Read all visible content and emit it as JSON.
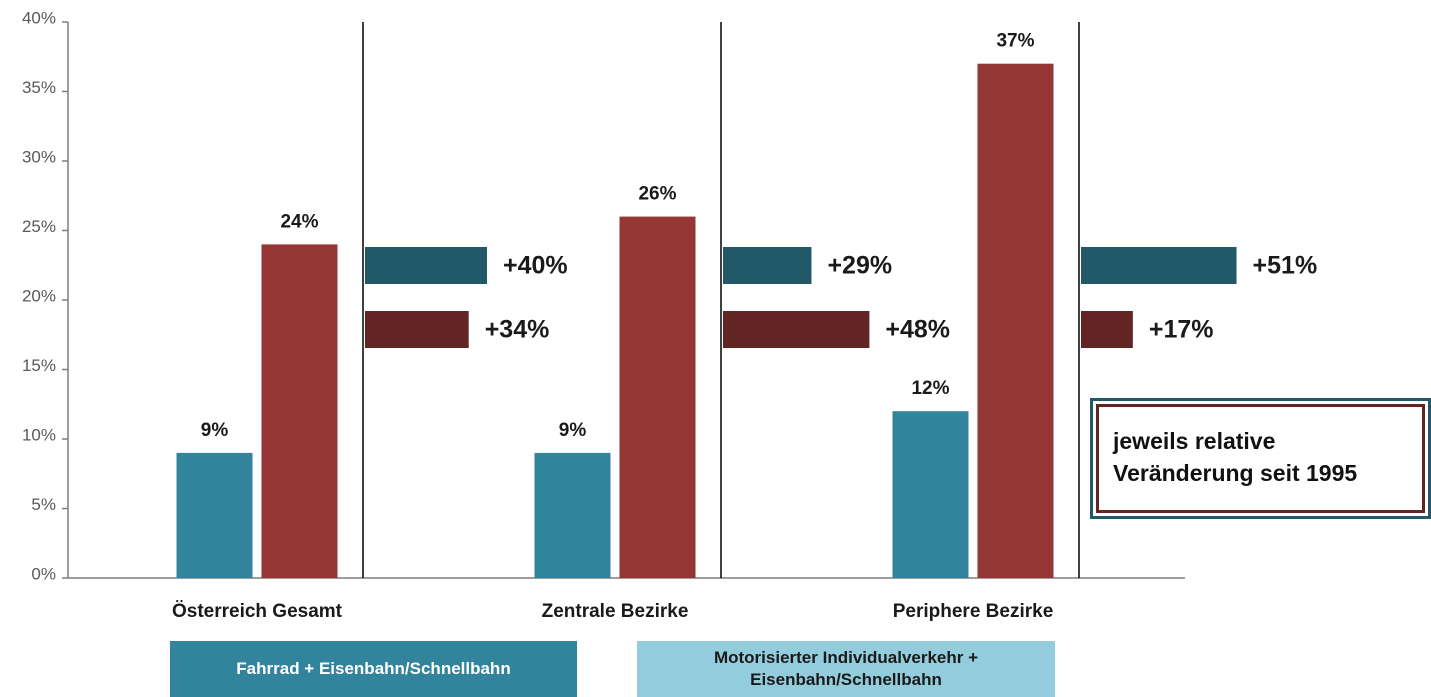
{
  "chart_data": {
    "type": "bar",
    "categories": [
      "Österreich Gesamt",
      "Zentrale Bezirke",
      "Periphere Bezirke"
    ],
    "series": [
      {
        "name": "Fahrrad + Eisenbahn/Schnellbahn",
        "color": "#31849b",
        "legend_color": "#31849b",
        "values": [
          9,
          9,
          12
        ],
        "value_labels": [
          "9%",
          "9%",
          "12%"
        ]
      },
      {
        "name": "Motorisierter Individualverkehr + Eisenbahn/Schnellbahn",
        "color": "#943634",
        "legend_color": "#93cddd",
        "values": [
          24,
          26,
          37
        ],
        "value_labels": [
          "24%",
          "26%",
          "37%"
        ]
      }
    ],
    "change_series": [
      {
        "color": "#215968",
        "values": [
          40,
          29,
          51
        ],
        "value_labels": [
          "+40%",
          "+29%",
          "+51%"
        ]
      },
      {
        "color": "#632523",
        "values": [
          34,
          48,
          17
        ],
        "value_labels": [
          "+34%",
          "+48%",
          "+17%"
        ]
      }
    ],
    "ylim": [
      0,
      40
    ],
    "yticks": [
      {
        "value": 0,
        "label": "0%"
      },
      {
        "value": 5,
        "label": "5%"
      },
      {
        "value": 10,
        "label": "10%"
      },
      {
        "value": 15,
        "label": "15%"
      },
      {
        "value": 20,
        "label": "20%"
      },
      {
        "value": 25,
        "label": "25%"
      },
      {
        "value": 30,
        "label": "30%"
      },
      {
        "value": 35,
        "label": "35%"
      },
      {
        "value": 40,
        "label": "40%"
      }
    ],
    "annotation": "jeweils relative Veränderung seit 1995"
  }
}
